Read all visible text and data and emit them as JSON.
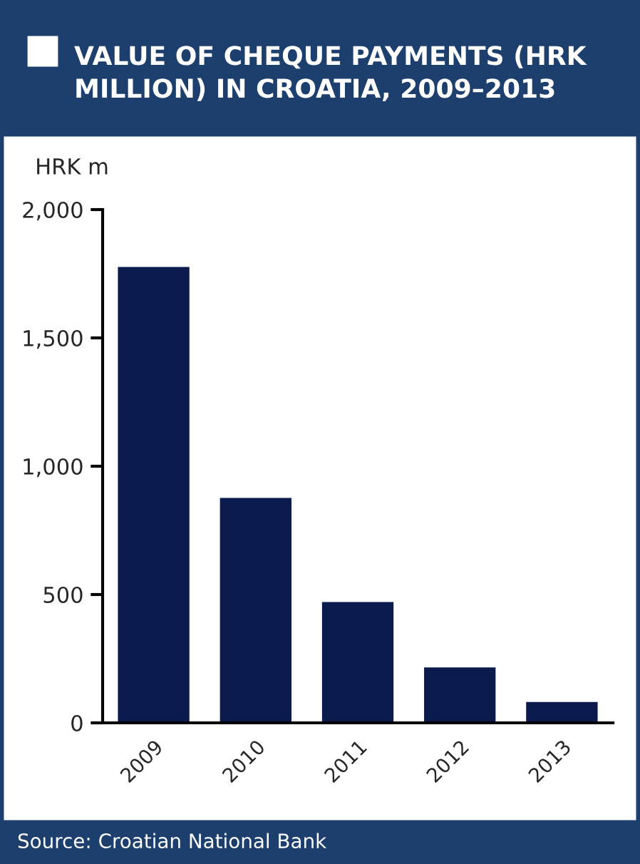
{
  "chart_data": {
    "type": "bar",
    "title": "VALUE OF CHEQUE PAYMENTS (HRK\nMILLION) IN CROATIA, 2009–2013",
    "ylabel": "HRK m",
    "categories": [
      "2009",
      "2010",
      "2011",
      "2012",
      "2013"
    ],
    "values": [
      1780,
      880,
      475,
      220,
      85
    ],
    "color": "#0b1a4d",
    "ylim": [
      0,
      2000
    ],
    "yticks": [
      {
        "value": 0,
        "label": "0"
      },
      {
        "value": 500,
        "label": "500"
      },
      {
        "value": 1000,
        "label": "1,000"
      },
      {
        "value": 1500,
        "label": "1,500"
      },
      {
        "value": 2000,
        "label": "2,000"
      }
    ],
    "grid": false,
    "annotations": [
      "Source: Croatian National Bank"
    ]
  }
}
